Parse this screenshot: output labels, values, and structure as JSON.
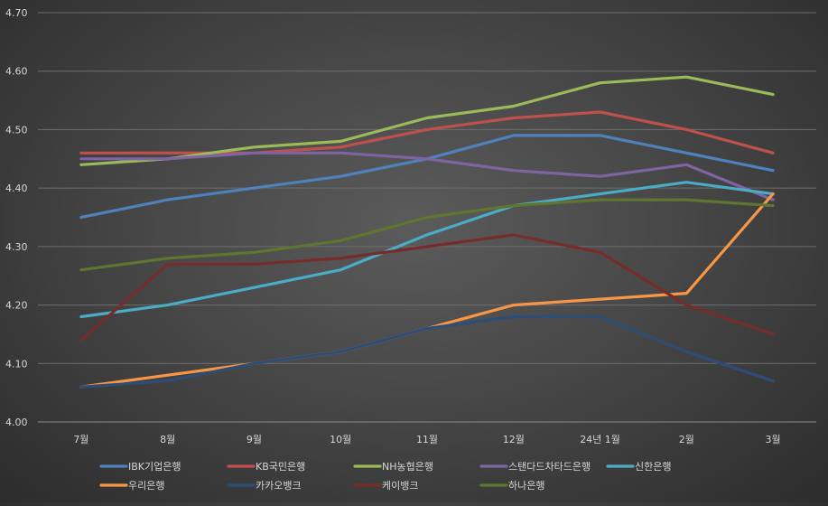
{
  "chart_data": {
    "type": "line",
    "categories": [
      "7월",
      "8월",
      "9월",
      "10월",
      "11월",
      "12월",
      "24년 1월",
      "2월",
      "3월"
    ],
    "ylim": [
      4.0,
      4.7
    ],
    "yticks": [
      "4.00",
      "4.10",
      "4.20",
      "4.30",
      "4.40",
      "4.50",
      "4.60",
      "4.70"
    ],
    "grid": "horizontal",
    "legend_position": "bottom",
    "series": [
      {
        "name": "IBK기업은행",
        "color": "#4f81bd",
        "values": [
          4.35,
          4.38,
          4.4,
          4.42,
          4.45,
          4.49,
          4.49,
          4.46,
          4.43
        ]
      },
      {
        "name": "KB국민은행",
        "color": "#c0504d",
        "values": [
          4.46,
          4.46,
          4.46,
          4.47,
          4.5,
          4.52,
          4.53,
          4.5,
          4.46
        ]
      },
      {
        "name": "NH농협은행",
        "color": "#9bbb59",
        "values": [
          4.44,
          4.45,
          4.47,
          4.48,
          4.52,
          4.54,
          4.58,
          4.59,
          4.56
        ]
      },
      {
        "name": "스탠다드차타드은행",
        "color": "#8064a2",
        "values": [
          4.45,
          4.45,
          4.46,
          4.46,
          4.45,
          4.43,
          4.42,
          4.44,
          4.38
        ]
      },
      {
        "name": "신한은행",
        "color": "#4bacc6",
        "values": [
          4.18,
          4.2,
          4.23,
          4.26,
          4.32,
          4.37,
          4.39,
          4.41,
          4.39
        ]
      },
      {
        "name": "우리은행",
        "color": "#f79646",
        "values": [
          4.06,
          4.08,
          4.1,
          4.12,
          4.16,
          4.2,
          4.21,
          4.22,
          4.39
        ]
      },
      {
        "name": "카카오뱅크",
        "color": "#2c4d75",
        "values": [
          4.06,
          4.07,
          4.1,
          4.12,
          4.16,
          4.18,
          4.18,
          4.12,
          4.07
        ]
      },
      {
        "name": "케이뱅크",
        "color": "#772c2a",
        "values": [
          4.14,
          4.27,
          4.27,
          4.28,
          4.3,
          4.32,
          4.29,
          4.2,
          4.15
        ]
      },
      {
        "name": "하나은행",
        "color": "#5f7530",
        "values": [
          4.26,
          4.28,
          4.29,
          4.31,
          4.35,
          4.37,
          4.38,
          4.38,
          4.37
        ]
      }
    ]
  }
}
